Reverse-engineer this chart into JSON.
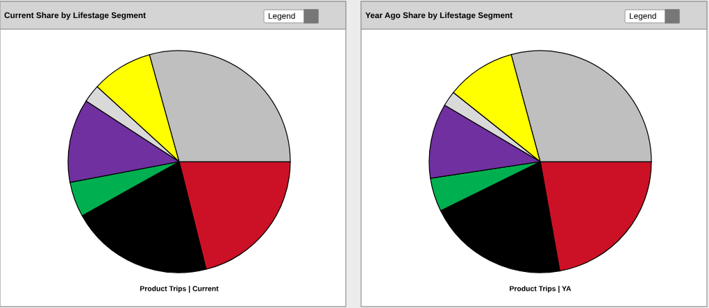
{
  "chart_data": [
    {
      "type": "pie",
      "title": "Current Share by Lifestage Segment",
      "xlabel": "Product Trips | Current",
      "annotations": [
        "Legend"
      ],
      "legend": false,
      "categories": [
        null,
        null,
        null,
        null,
        null,
        null,
        null
      ],
      "values": [
        21.1,
        20.8,
        5.1,
        12.2,
        2.6,
        8.9,
        29.3
      ],
      "colors": [
        "#cc1126",
        "#000000",
        "#00b050",
        "#7030a0",
        "#d9d9d9",
        "#ffff00",
        "#bfbfbf"
      ]
    },
    {
      "type": "pie",
      "title": "Year Ago Share by Lifestage Segment",
      "xlabel": "Product Trips | YA",
      "annotations": [
        "Legend"
      ],
      "legend": false,
      "categories": [
        null,
        null,
        null,
        null,
        null,
        null,
        null
      ],
      "values": [
        22.2,
        20.5,
        4.9,
        10.9,
        2.2,
        10.1,
        29.2
      ],
      "colors": [
        "#cc1126",
        "#000000",
        "#00b050",
        "#7030a0",
        "#d9d9d9",
        "#ffff00",
        "#bfbfbf"
      ]
    }
  ]
}
